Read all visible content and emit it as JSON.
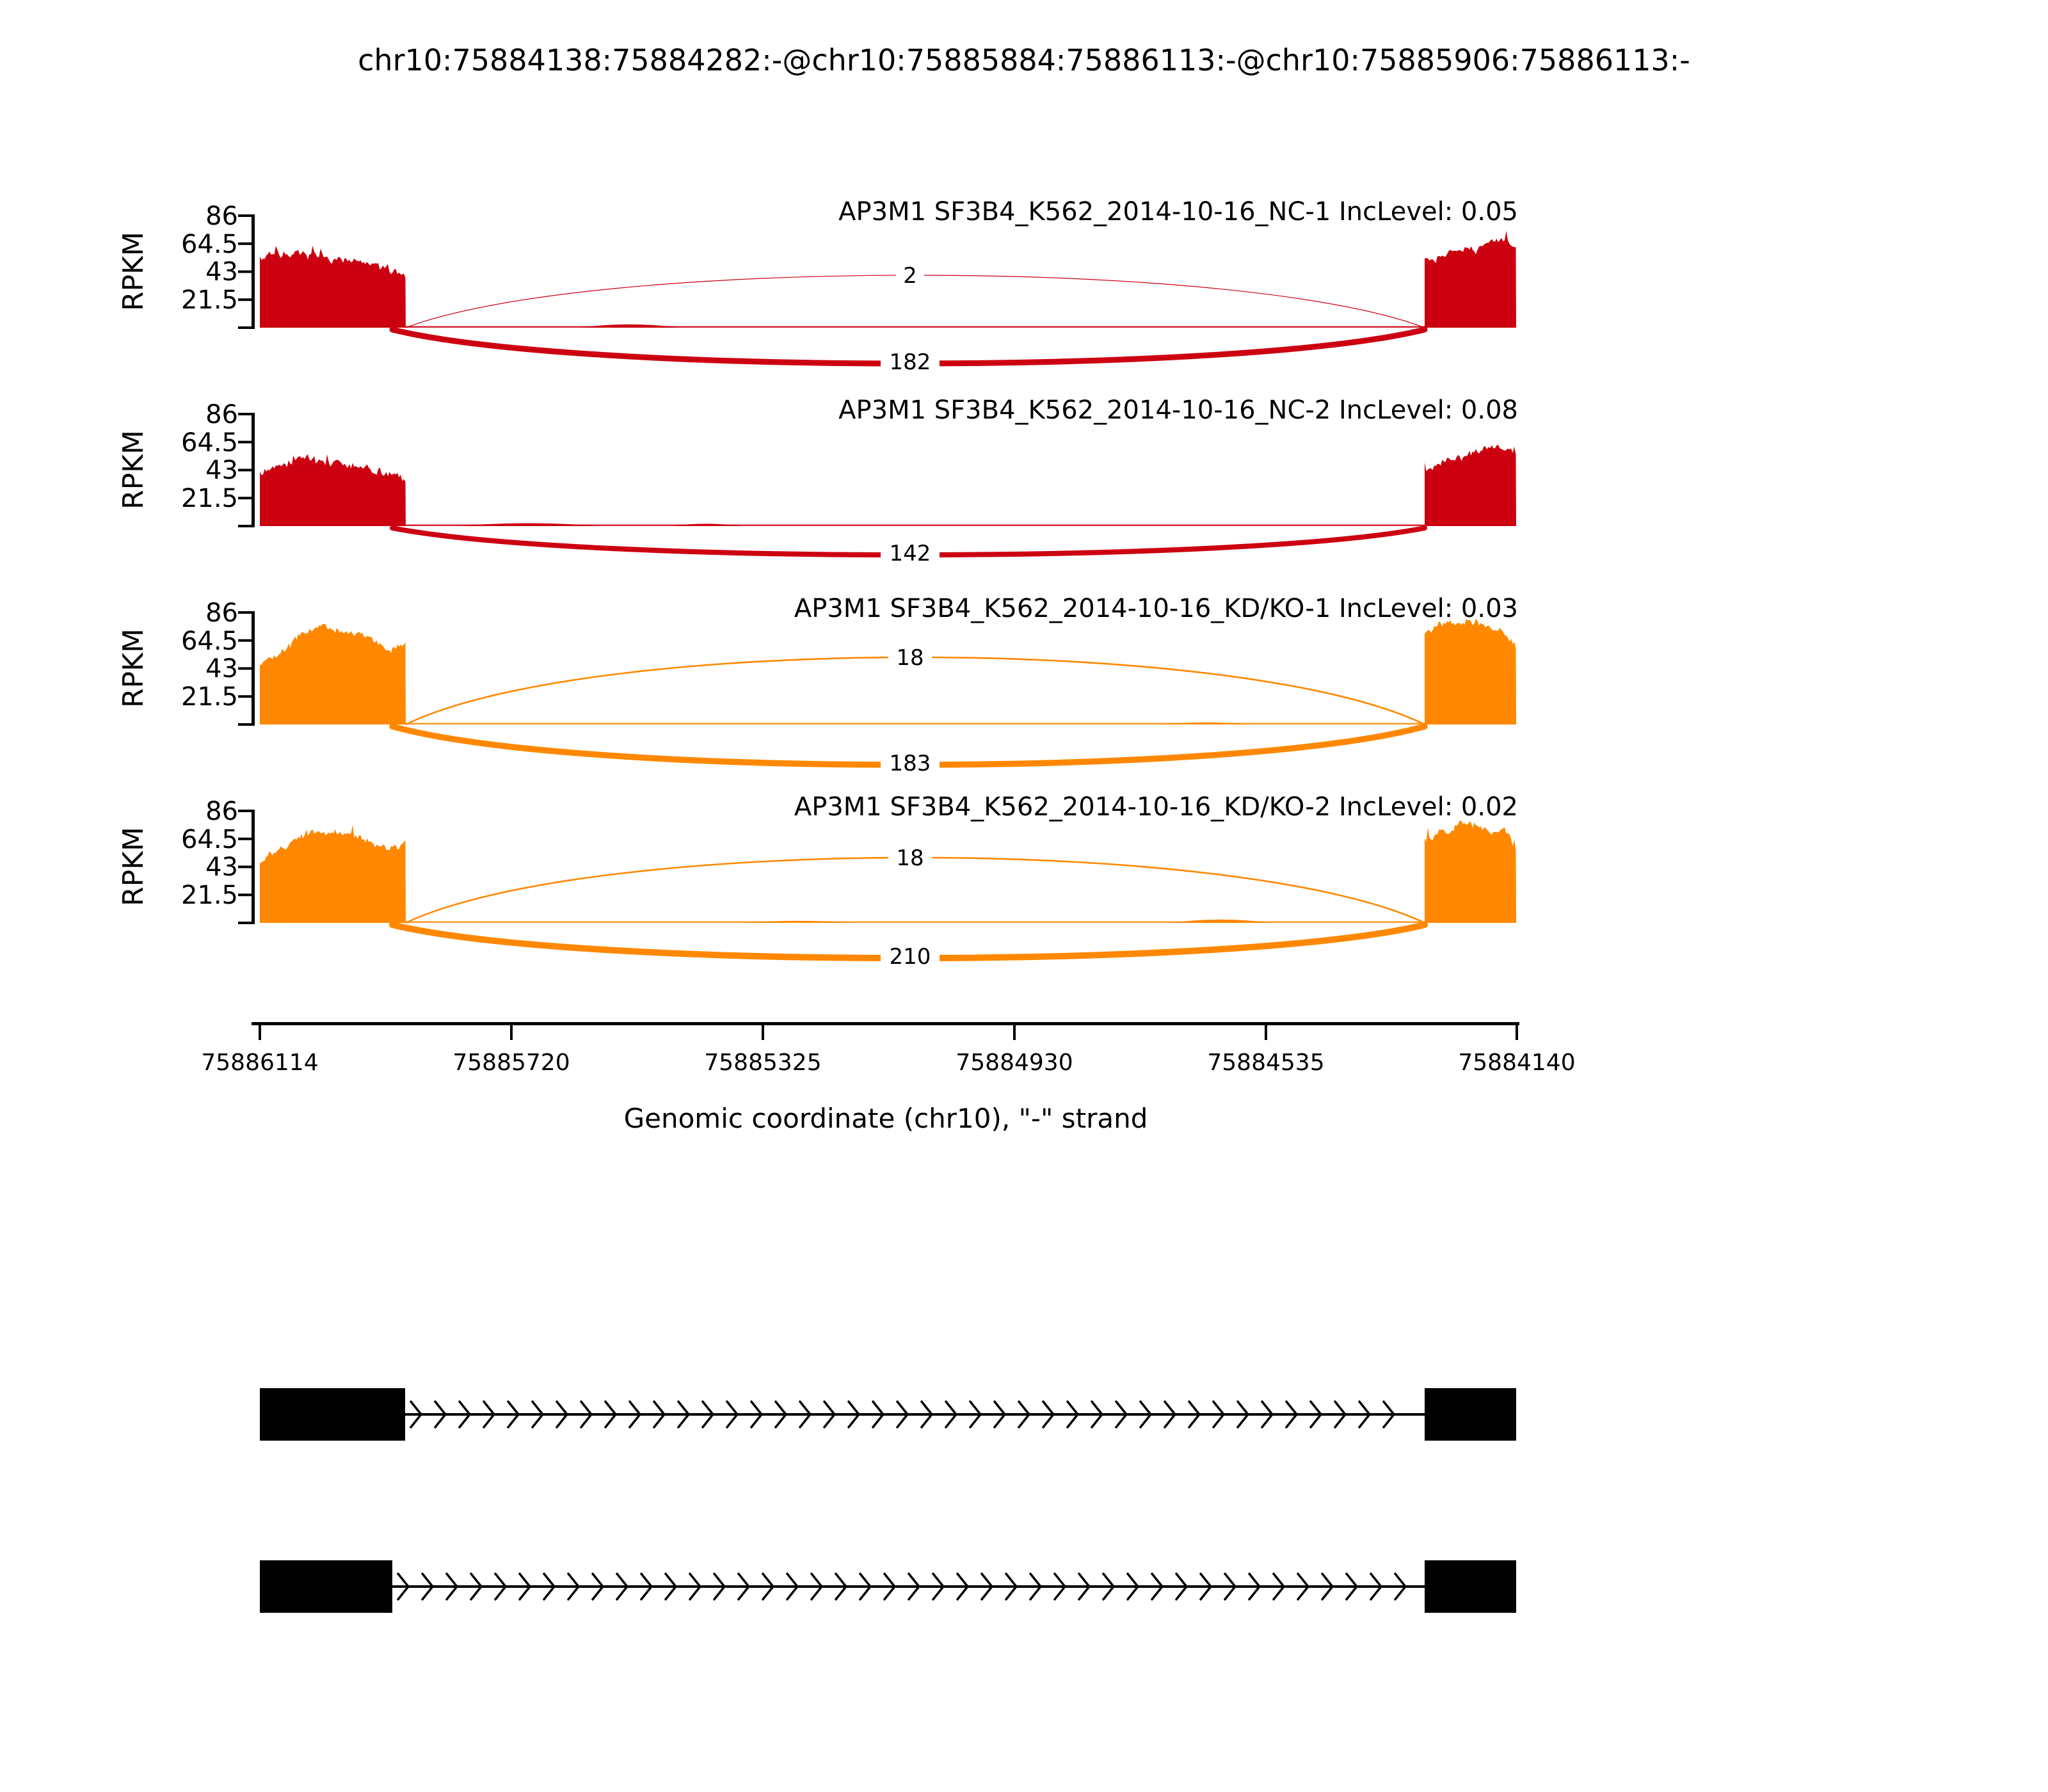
{
  "chart_data": {
    "type": "area",
    "subtype": "sashimi-plot",
    "title": "chr10:75884138:75884282:-@chr10:75885884:75886113:-@chr10:75885906:75886113:-",
    "region": {
      "chrom": "chr10",
      "strand": "-",
      "coords_in_title": [
        75884138,
        75884282,
        75885884,
        75886113,
        75885906,
        75886113
      ]
    },
    "yaxis": {
      "label": "RPKM",
      "ticks": [
        "86",
        "64.5",
        "43",
        "21.5"
      ],
      "tick_values": [
        86,
        64.5,
        43,
        21.5
      ],
      "max": 86
    },
    "xaxis": {
      "label": "Genomic coordinate (chr10), \"-\" strand",
      "ticks": [
        "75886114",
        "75885720",
        "75885325",
        "75884930",
        "75884535",
        "75884140"
      ],
      "tick_values": [
        75886114,
        75885720,
        75885325,
        75884930,
        75884535,
        75884140
      ],
      "start": 75886114,
      "end": 75884140
    },
    "tracks": [
      {
        "name": "NC-1",
        "title": "AP3M1 SF3B4_K562_2014-10-16_NC-1 IncLevel: 0.05",
        "inc_level": 0.05,
        "color": "#CC0011",
        "junctions": {
          "top": {
            "count": 2,
            "stroke": 1.2,
            "apex": 82
          },
          "bottom": {
            "count": 182,
            "stroke": 9,
            "apex": 53
          }
        },
        "coverage_left": [
          [
            0,
            52
          ],
          [
            0.05,
            58
          ],
          [
            0.3,
            56
          ],
          [
            0.6,
            52
          ],
          [
            0.85,
            46
          ],
          [
            1,
            42
          ]
        ],
        "coverage_right": [
          [
            0,
            52
          ],
          [
            0.25,
            57
          ],
          [
            0.55,
            60
          ],
          [
            0.78,
            66
          ],
          [
            0.88,
            70
          ],
          [
            0.95,
            62
          ],
          [
            1,
            64
          ]
        ],
        "intron_bumps": [
          [
            0.17,
            0.27,
            2.5
          ]
        ],
        "seed": 7
      },
      {
        "name": "NC-2",
        "title": "AP3M1 SF3B4_K562_2014-10-16_NC-2 IncLevel: 0.08",
        "inc_level": 0.08,
        "color": "#CC0011",
        "junctions": {
          "top": null,
          "bottom": {
            "count": 142,
            "stroke": 8,
            "apex": 42
          }
        },
        "coverage_left": [
          [
            0,
            42
          ],
          [
            0.15,
            48
          ],
          [
            0.3,
            52
          ],
          [
            0.5,
            48
          ],
          [
            0.75,
            44
          ],
          [
            1,
            36
          ]
        ],
        "coverage_right": [
          [
            0,
            44
          ],
          [
            0.3,
            52
          ],
          [
            0.6,
            58
          ],
          [
            0.8,
            62
          ],
          [
            0.9,
            60
          ],
          [
            1,
            54
          ]
        ],
        "intron_bumps": [
          [
            0.05,
            0.19,
            2.2
          ],
          [
            0.26,
            0.33,
            1.8
          ]
        ],
        "seed": 13
      },
      {
        "name": "KD/KO-1",
        "title": "AP3M1 SF3B4_K562_2014-10-16_KD/KO-1 IncLevel: 0.03",
        "inc_level": 0.03,
        "color": "#FF8800",
        "junctions": {
          "top": {
            "count": 18,
            "stroke": 2.6,
            "apex": 105
          },
          "bottom": {
            "count": 183,
            "stroke": 9.5,
            "apex": 60
          }
        },
        "coverage_left": [
          [
            0,
            46
          ],
          [
            0.15,
            55
          ],
          [
            0.3,
            72
          ],
          [
            0.45,
            75
          ],
          [
            0.6,
            70
          ],
          [
            0.75,
            66
          ],
          [
            0.9,
            58
          ],
          [
            1,
            60
          ]
        ],
        "coverage_right": [
          [
            0,
            70
          ],
          [
            0.15,
            78
          ],
          [
            0.4,
            80
          ],
          [
            0.6,
            78
          ],
          [
            0.75,
            72
          ],
          [
            0.9,
            70
          ],
          [
            1,
            60
          ]
        ],
        "intron_bumps": [
          [
            0.74,
            0.83,
            1.6
          ]
        ],
        "seed": 21
      },
      {
        "name": "KD/KO-2",
        "title": "AP3M1 SF3B4_K562_2014-10-16_KD/KO-2 IncLevel: 0.02",
        "inc_level": 0.02,
        "color": "#FF8800",
        "junctions": {
          "top": {
            "count": 18,
            "stroke": 2.6,
            "apex": 102
          },
          "bottom": {
            "count": 210,
            "stroke": 10,
            "apex": 52
          }
        },
        "coverage_left": [
          [
            0,
            48
          ],
          [
            0.2,
            62
          ],
          [
            0.35,
            70
          ],
          [
            0.5,
            68
          ],
          [
            0.65,
            66
          ],
          [
            0.85,
            58
          ],
          [
            1,
            60
          ]
        ],
        "coverage_right": [
          [
            0,
            64
          ],
          [
            0.2,
            72
          ],
          [
            0.45,
            76
          ],
          [
            0.7,
            70
          ],
          [
            0.85,
            74
          ],
          [
            1,
            56
          ]
        ],
        "intron_bumps": [
          [
            0.33,
            0.44,
            1.6
          ],
          [
            0.75,
            0.85,
            2.6
          ]
        ],
        "seed": 29
      }
    ],
    "gene_model": {
      "isoforms": [
        {
          "exons": [
            {
              "start": 75885884,
              "end": 75886113
            },
            {
              "start": 75884138,
              "end": 75884282
            }
          ]
        },
        {
          "exons": [
            {
              "start": 75885906,
              "end": 75886113
            },
            {
              "start": 75884138,
              "end": 75884282
            }
          ]
        }
      ],
      "color": "#000000"
    }
  }
}
